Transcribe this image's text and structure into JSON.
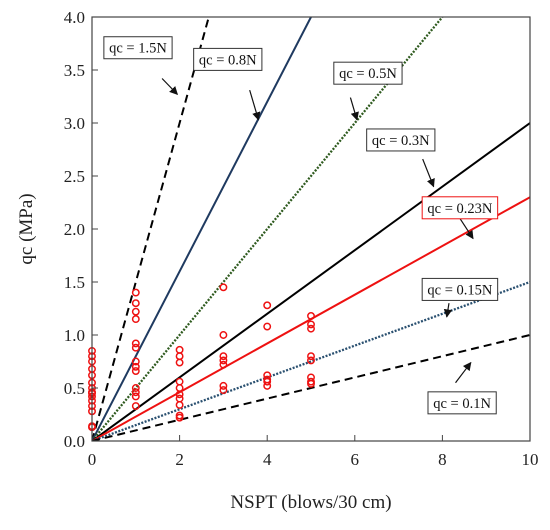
{
  "chart_data": {
    "type": "scatter",
    "xlabel": "NSPT (blows/30 cm)",
    "ylabel": "qc (MPa)",
    "xlim": [
      0,
      10
    ],
    "ylim": [
      0,
      4.0
    ],
    "xticks": [
      0,
      2,
      4,
      6,
      8,
      10
    ],
    "yticks": [
      "0.0",
      "0.5",
      "1.0",
      "1.5",
      "2.0",
      "2.5",
      "3.0",
      "3.5",
      "4.0"
    ],
    "grid": false,
    "lines": [
      {
        "label": "qc = 1.5N",
        "slope": 1.5,
        "color": "#000000",
        "style": "dashed",
        "label_pos": [
          1.05,
          3.71
        ],
        "arrow_from": [
          1.6,
          3.42
        ],
        "arrow_to": [
          1.95,
          3.27
        ]
      },
      {
        "label": "qc = 0.8N",
        "slope": 0.8,
        "color": "#1f3a60",
        "style": "solid",
        "label_pos": [
          3.1,
          3.6
        ],
        "arrow_from": [
          3.6,
          3.31
        ],
        "arrow_to": [
          3.8,
          3.03
        ]
      },
      {
        "label": "qc = 0.5N",
        "slope": 0.5,
        "color": "#2e5a1e",
        "style": "dotted",
        "label_pos": [
          6.3,
          3.47
        ],
        "arrow_from": [
          5.9,
          3.24
        ],
        "arrow_to": [
          6.05,
          3.03
        ]
      },
      {
        "label": "qc = 0.3N",
        "slope": 0.3,
        "color": "#000000",
        "style": "solid",
        "label_pos": [
          7.05,
          2.84
        ],
        "arrow_from": [
          7.55,
          2.66
        ],
        "arrow_to": [
          7.8,
          2.4
        ]
      },
      {
        "label": "qc = 0.23N",
        "slope": 0.23,
        "color": "#ee1111",
        "style": "solid",
        "label_pos": [
          8.4,
          2.2
        ],
        "arrow_from": [
          8.4,
          2.1
        ],
        "arrow_to": [
          8.7,
          1.91
        ]
      },
      {
        "label": "qc = 0.15N",
        "slope": 0.15,
        "color": "#2a5070",
        "style": "dotted",
        "label_pos": [
          8.4,
          1.43
        ],
        "arrow_from": [
          8.15,
          1.3
        ],
        "arrow_to": [
          8.1,
          1.17
        ]
      },
      {
        "label": "qc = 0.1N",
        "slope": 0.1,
        "color": "#000000",
        "style": "dashed",
        "label_pos": [
          8.45,
          0.36
        ],
        "arrow_from": [
          8.3,
          0.55
        ],
        "arrow_to": [
          8.65,
          0.74
        ]
      }
    ],
    "points": {
      "color": "#ee1111",
      "x": [
        0,
        0,
        0,
        0,
        0,
        0,
        0,
        0,
        0,
        0,
        0,
        0,
        0,
        0,
        0,
        1,
        1,
        1,
        1,
        1,
        1,
        1,
        1,
        1,
        1,
        1,
        1,
        1,
        2,
        2,
        2,
        2,
        2,
        2,
        2,
        2,
        2,
        2,
        3,
        3,
        3,
        3,
        3,
        3,
        3,
        4,
        4,
        4,
        4,
        4,
        4,
        5,
        5,
        5,
        5,
        5,
        5,
        5,
        5
      ],
      "y": [
        0.85,
        0.8,
        0.75,
        0.68,
        0.62,
        0.55,
        0.5,
        0.46,
        0.42,
        0.38,
        0.33,
        0.28,
        0.14,
        0.13,
        0.45,
        1.4,
        1.3,
        1.22,
        1.15,
        0.92,
        0.88,
        0.75,
        0.7,
        0.66,
        0.5,
        0.46,
        0.42,
        0.33,
        0.86,
        0.8,
        0.74,
        0.56,
        0.5,
        0.44,
        0.4,
        0.34,
        0.24,
        0.22,
        1.45,
        1.0,
        0.8,
        0.76,
        0.72,
        0.52,
        0.48,
        1.28,
        1.08,
        0.62,
        0.58,
        0.56,
        0.52,
        1.18,
        1.1,
        1.06,
        0.8,
        0.76,
        0.6,
        0.56,
        0.54
      ]
    }
  }
}
